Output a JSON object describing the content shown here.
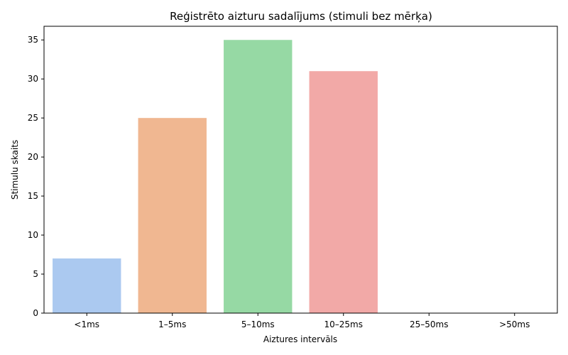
{
  "chart_data": {
    "type": "bar",
    "title": "Reģistrēto aizturu sadalījums (stimuli bez mērķa)",
    "xlabel": "Aiztures intervāls",
    "ylabel": "Stimulu skaits",
    "categories": [
      "<1ms",
      "1–5ms",
      "5–10ms",
      "10–25ms",
      "25–50ms",
      ">50ms"
    ],
    "values": [
      7,
      25,
      35,
      31,
      0,
      0
    ],
    "colors": [
      "#abc9f0",
      "#f0b791",
      "#96d9a4",
      "#f2a9a7",
      "#c9b3e6",
      "#d4b59e"
    ],
    "ylim": [
      0,
      36.75
    ],
    "yticks": [
      0,
      5,
      10,
      15,
      20,
      25,
      30,
      35
    ],
    "grid": false,
    "legend": false
  }
}
